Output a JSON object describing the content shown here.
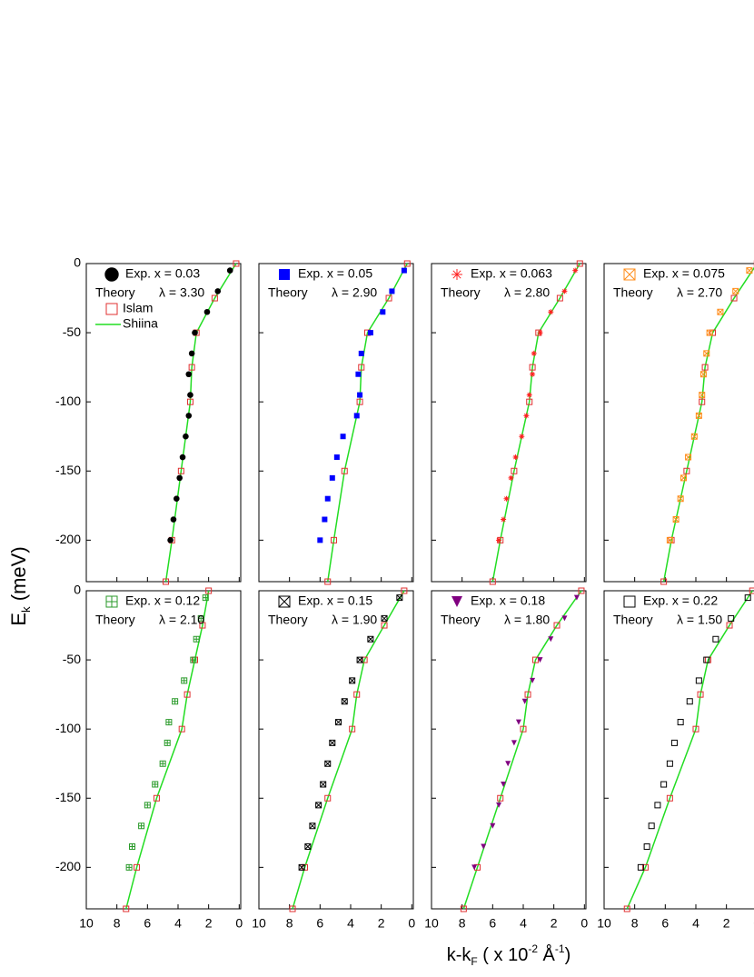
{
  "ylabel": [
    {
      "text": "E"
    },
    {
      "text": "k",
      "shift": "sub"
    },
    {
      "text": " (meV)"
    }
  ],
  "xlabel": [
    {
      "text": "k-k"
    },
    {
      "text": "F",
      "shift": "sub"
    },
    {
      "text": " ( x 10"
    },
    {
      "text": "-2",
      "shift": "sup"
    },
    {
      "text": " Å"
    },
    {
      "text": "-1",
      "shift": "sup"
    },
    {
      "text": ")"
    }
  ],
  "chart_data": [
    {
      "type": "scatter",
      "xlim": [
        10,
        -0.1
      ],
      "ylim": [
        -230,
        0
      ],
      "xticks": [
        10,
        8,
        6,
        4,
        2,
        0
      ],
      "yticks": [
        0,
        -50,
        -100,
        -150,
        -200
      ],
      "show_xtick_labels": false,
      "show_ytick_labels": true,
      "annotations": [
        "Theory",
        "λ = 3.30"
      ],
      "series": [
        {
          "name": "Exp. x = 0.03",
          "marker": "circle",
          "color": "#000000",
          "x": [
            0.6,
            1.4,
            2.1,
            2.9,
            3.1,
            3.3,
            3.2,
            3.3,
            3.5,
            3.7,
            3.9,
            4.1,
            4.3,
            4.5
          ],
          "y": [
            -5,
            -20,
            -35,
            -50,
            -65,
            -80,
            -95,
            -110,
            -125,
            -140,
            -155,
            -170,
            -185,
            -200
          ]
        },
        {
          "name": "Islam",
          "marker": "open-square",
          "color": "#e03030",
          "x": [
            0.2,
            1.6,
            2.8,
            3.1,
            3.2,
            3.8,
            4.4,
            4.8
          ],
          "y": [
            0,
            -25,
            -50,
            -75,
            -100,
            -150,
            -200,
            -230
          ]
        },
        {
          "name": "Shiina",
          "marker": "line",
          "color": "#22dd22",
          "x": [
            0.2,
            1.6,
            2.8,
            3.1,
            3.2,
            3.8,
            4.4,
            4.8
          ],
          "y": [
            0,
            -25,
            -50,
            -75,
            -100,
            -150,
            -200,
            -230
          ]
        }
      ]
    },
    {
      "type": "scatter",
      "xlim": [
        10,
        -0.1
      ],
      "ylim": [
        -230,
        0
      ],
      "xticks": [
        10,
        8,
        6,
        4,
        2,
        0
      ],
      "yticks": [
        0,
        -50,
        -100,
        -150,
        -200
      ],
      "show_xtick_labels": false,
      "show_ytick_labels": false,
      "annotations": [
        "Theory",
        "λ = 2.90"
      ],
      "series": [
        {
          "name": "Exp. x = 0.05",
          "marker": "square",
          "color": "#0000ff",
          "x": [
            0.5,
            1.3,
            1.9,
            2.7,
            3.3,
            3.5,
            3.4,
            3.6,
            4.5,
            4.9,
            5.2,
            5.5,
            5.7,
            6.0
          ],
          "y": [
            -5,
            -20,
            -35,
            -50,
            -65,
            -80,
            -95,
            -110,
            -125,
            -140,
            -155,
            -170,
            -185,
            -200
          ]
        },
        {
          "marker": "open-square",
          "color": "#e03030",
          "x": [
            0.3,
            1.5,
            2.9,
            3.3,
            3.4,
            4.4,
            5.1,
            5.5
          ],
          "y": [
            0,
            -25,
            -50,
            -75,
            -100,
            -150,
            -200,
            -230
          ]
        },
        {
          "marker": "line",
          "color": "#22dd22",
          "x": [
            0.3,
            1.5,
            2.9,
            3.3,
            3.4,
            4.4,
            5.1,
            5.5
          ],
          "y": [
            0,
            -25,
            -50,
            -75,
            -100,
            -150,
            -200,
            -230
          ]
        }
      ]
    },
    {
      "type": "scatter",
      "xlim": [
        10,
        -0.1
      ],
      "ylim": [
        -230,
        0
      ],
      "xticks": [
        10,
        8,
        6,
        4,
        2,
        0
      ],
      "yticks": [
        0,
        -50,
        -100,
        -150,
        -200
      ],
      "show_xtick_labels": false,
      "show_ytick_labels": false,
      "annotations": [
        "Theory",
        "λ = 2.80"
      ],
      "series": [
        {
          "name": "Exp. x = 0.063",
          "marker": "asterisk",
          "color": "#ff2020",
          "x": [
            0.6,
            1.3,
            2.2,
            2.9,
            3.3,
            3.4,
            3.6,
            3.8,
            4.1,
            4.5,
            4.8,
            5.1,
            5.3,
            5.6
          ],
          "y": [
            -5,
            -20,
            -35,
            -50,
            -65,
            -80,
            -95,
            -110,
            -125,
            -140,
            -155,
            -170,
            -185,
            -200
          ]
        },
        {
          "marker": "open-square",
          "color": "#e03030",
          "x": [
            0.3,
            1.6,
            3.0,
            3.4,
            3.6,
            4.6,
            5.5,
            6.0
          ],
          "y": [
            0,
            -25,
            -50,
            -75,
            -100,
            -150,
            -200,
            -230
          ]
        },
        {
          "marker": "line",
          "color": "#22dd22",
          "x": [
            0.3,
            1.6,
            3.0,
            3.4,
            3.6,
            4.6,
            5.5,
            6.0
          ],
          "y": [
            0,
            -25,
            -50,
            -75,
            -100,
            -150,
            -200,
            -230
          ]
        }
      ]
    },
    {
      "type": "scatter",
      "xlim": [
        10,
        -0.1
      ],
      "ylim": [
        -230,
        0
      ],
      "xticks": [
        10,
        8,
        6,
        4,
        2,
        0
      ],
      "yticks": [
        0,
        -50,
        -100,
        -150,
        -200
      ],
      "show_xtick_labels": false,
      "show_ytick_labels": false,
      "annotations": [
        "Theory",
        "λ = 2.70"
      ],
      "series": [
        {
          "name": "Exp. x = 0.075",
          "marker": "xsquare",
          "color": "#ff8c1a",
          "x": [
            0.5,
            1.4,
            2.4,
            3.1,
            3.3,
            3.5,
            3.6,
            3.8,
            4.1,
            4.5,
            4.8,
            5.0,
            5.3,
            5.7
          ],
          "y": [
            -5,
            -20,
            -35,
            -50,
            -65,
            -80,
            -95,
            -110,
            -125,
            -140,
            -155,
            -170,
            -185,
            -200
          ]
        },
        {
          "marker": "open-square",
          "color": "#e03030",
          "x": [
            0.0,
            1.5,
            2.9,
            3.4,
            3.6,
            4.6,
            5.6,
            6.1
          ],
          "y": [
            0,
            -25,
            -50,
            -75,
            -100,
            -150,
            -200,
            -230
          ]
        },
        {
          "marker": "line",
          "color": "#22dd22",
          "x": [
            0.0,
            1.5,
            2.9,
            3.4,
            3.6,
            4.6,
            5.6,
            6.1
          ],
          "y": [
            0,
            -25,
            -50,
            -75,
            -100,
            -150,
            -200,
            -230
          ]
        }
      ]
    },
    {
      "type": "scatter",
      "xlim": [
        10,
        -0.1
      ],
      "ylim": [
        -230,
        0
      ],
      "xticks": [
        10,
        8,
        6,
        4,
        2,
        0
      ],
      "yticks": [
        0,
        -50,
        -100,
        -150,
        -200
      ],
      "show_xtick_labels": true,
      "show_ytick_labels": true,
      "annotations": [
        "Theory",
        "λ = 2.10"
      ],
      "series": [
        {
          "name": "Exp. x = 0.12",
          "marker": "plussquare",
          "color": "#2a9a2a",
          "x": [
            2.2,
            2.5,
            2.8,
            3.0,
            3.6,
            4.2,
            4.6,
            4.7,
            5.0,
            5.5,
            6.0,
            6.4,
            7.0,
            7.2
          ],
          "y": [
            -5,
            -20,
            -35,
            -50,
            -65,
            -80,
            -95,
            -110,
            -125,
            -140,
            -155,
            -170,
            -185,
            -200
          ]
        },
        {
          "marker": "open-square",
          "color": "#e03030",
          "x": [
            2.0,
            2.4,
            2.9,
            3.4,
            3.75,
            5.4,
            6.7,
            7.4
          ],
          "y": [
            0,
            -25,
            -50,
            -75,
            -100,
            -150,
            -200,
            -230
          ]
        },
        {
          "marker": "line",
          "color": "#22dd22",
          "x": [
            2.0,
            2.4,
            2.9,
            3.4,
            3.75,
            5.4,
            6.7,
            7.4
          ],
          "y": [
            0,
            -25,
            -50,
            -75,
            -100,
            -150,
            -200,
            -230
          ]
        }
      ]
    },
    {
      "type": "scatter",
      "xlim": [
        10,
        -0.1
      ],
      "ylim": [
        -230,
        0
      ],
      "xticks": [
        10,
        8,
        6,
        4,
        2,
        0
      ],
      "yticks": [
        0,
        -50,
        -100,
        -150,
        -200
      ],
      "show_xtick_labels": true,
      "show_ytick_labels": false,
      "annotations": [
        "Theory",
        "λ = 1.90"
      ],
      "series": [
        {
          "name": "Exp. x = 0.15",
          "marker": "xsquare",
          "color": "#000000",
          "x": [
            0.8,
            1.8,
            2.7,
            3.4,
            3.9,
            4.4,
            4.8,
            5.2,
            5.5,
            5.8,
            6.1,
            6.5,
            6.8,
            7.2
          ],
          "y": [
            -5,
            -20,
            -35,
            -50,
            -65,
            -80,
            -95,
            -110,
            -125,
            -140,
            -155,
            -170,
            -185,
            -200
          ]
        },
        {
          "marker": "open-square",
          "color": "#e03030",
          "x": [
            0.5,
            1.8,
            3.1,
            3.6,
            3.9,
            5.5,
            7.0,
            7.8
          ],
          "y": [
            0,
            -25,
            -50,
            -75,
            -100,
            -150,
            -200,
            -230
          ]
        },
        {
          "marker": "line",
          "color": "#22dd22",
          "x": [
            0.5,
            1.8,
            3.1,
            3.6,
            3.9,
            5.5,
            7.0,
            7.8
          ],
          "y": [
            0,
            -25,
            -50,
            -75,
            -100,
            -150,
            -200,
            -230
          ]
        }
      ]
    },
    {
      "type": "scatter",
      "xlim": [
        10,
        -0.1
      ],
      "ylim": [
        -230,
        0
      ],
      "xticks": [
        10,
        8,
        6,
        4,
        2,
        0
      ],
      "yticks": [
        0,
        -50,
        -100,
        -150,
        -200
      ],
      "show_xtick_labels": true,
      "show_ytick_labels": false,
      "annotations": [
        "Theory",
        "λ = 1.80"
      ],
      "series": [
        {
          "name": "Exp. x = 0.18",
          "marker": "triangle-down",
          "color": "#800080",
          "x": [
            0.5,
            1.3,
            2.2,
            2.9,
            3.4,
            3.9,
            4.3,
            4.6,
            5.0,
            5.3,
            5.6,
            6.0,
            6.6,
            7.2
          ],
          "y": [
            -5,
            -20,
            -35,
            -50,
            -65,
            -80,
            -95,
            -110,
            -125,
            -140,
            -155,
            -170,
            -185,
            -200
          ]
        },
        {
          "marker": "open-square",
          "color": "#e03030",
          "x": [
            0.2,
            1.8,
            3.2,
            3.7,
            4.0,
            5.5,
            7.0,
            7.9
          ],
          "y": [
            0,
            -25,
            -50,
            -75,
            -100,
            -150,
            -200,
            -230
          ]
        },
        {
          "marker": "line",
          "color": "#22dd22",
          "x": [
            0.2,
            1.8,
            3.2,
            3.7,
            4.0,
            5.5,
            7.0,
            7.9
          ],
          "y": [
            0,
            -25,
            -50,
            -75,
            -100,
            -150,
            -200,
            -230
          ]
        }
      ]
    },
    {
      "type": "scatter",
      "xlim": [
        10,
        -0.1
      ],
      "ylim": [
        -230,
        0
      ],
      "xticks": [
        10,
        8,
        6,
        4,
        2,
        0
      ],
      "yticks": [
        0,
        -50,
        -100,
        -150,
        -200
      ],
      "show_xtick_labels": true,
      "show_ytick_labels": false,
      "annotations": [
        "Theory",
        "λ = 1.50"
      ],
      "series": [
        {
          "name": "Exp. x = 0.22",
          "marker": "open-square",
          "color": "#000000",
          "x": [
            0.6,
            1.7,
            2.7,
            3.3,
            3.8,
            4.4,
            5.0,
            5.4,
            5.7,
            6.1,
            6.5,
            6.9,
            7.2,
            7.6
          ],
          "y": [
            -5,
            -20,
            -35,
            -50,
            -65,
            -80,
            -95,
            -110,
            -125,
            -140,
            -155,
            -170,
            -185,
            -200
          ]
        },
        {
          "marker": "open-square",
          "color": "#e03030",
          "x": [
            0.3,
            1.8,
            3.2,
            3.7,
            4.0,
            5.7,
            7.3,
            8.5
          ],
          "y": [
            0,
            -25,
            -50,
            -75,
            -100,
            -150,
            -200,
            -230
          ]
        },
        {
          "marker": "line",
          "color": "#22dd22",
          "x": [
            0.3,
            1.8,
            3.2,
            3.7,
            4.0,
            5.7,
            7.3,
            8.5
          ],
          "y": [
            0,
            -25,
            -50,
            -75,
            -100,
            -150,
            -200,
            -230
          ]
        }
      ]
    }
  ]
}
